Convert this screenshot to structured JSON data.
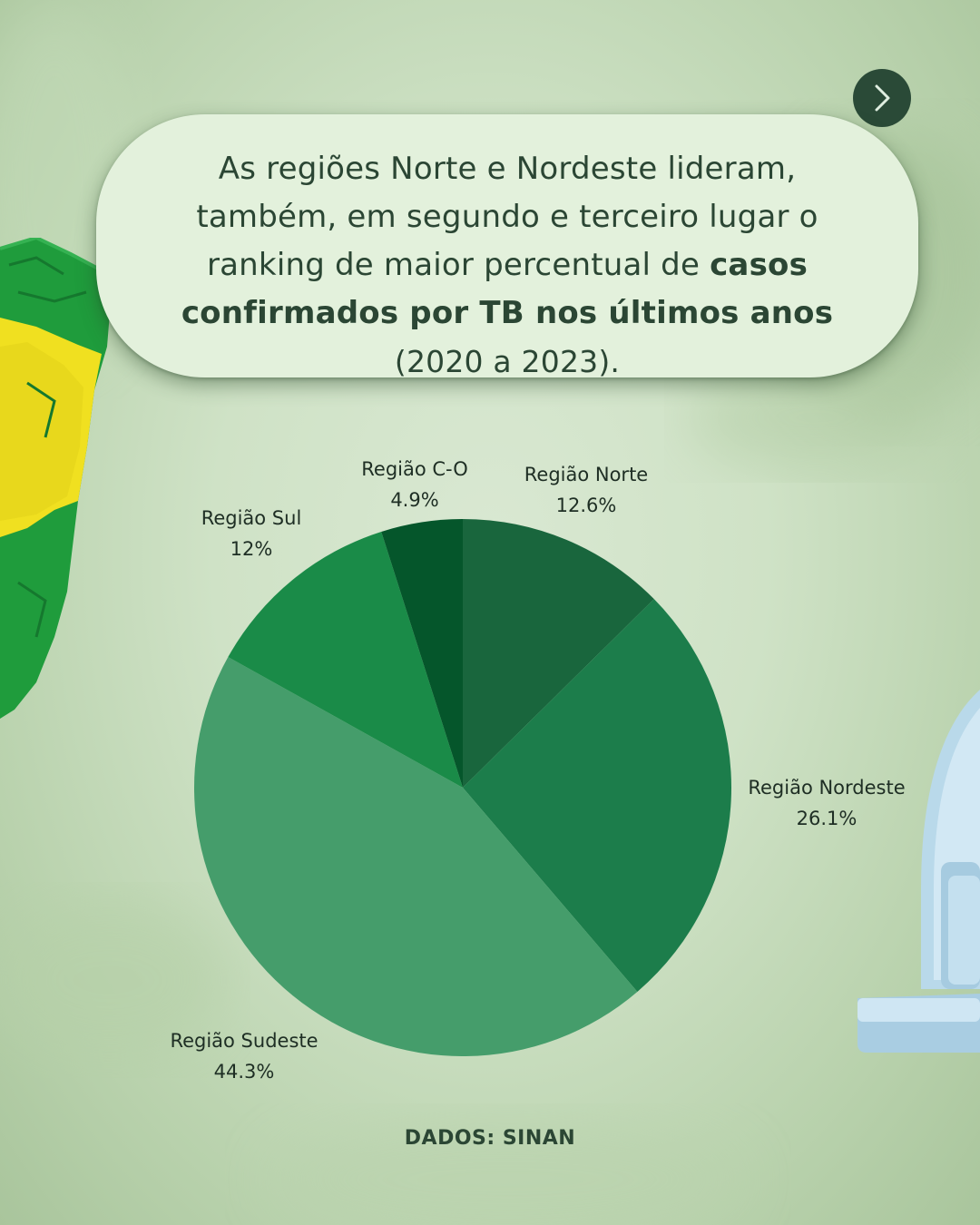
{
  "headline": {
    "line1": "As regiões Norte e Nordeste lideram,",
    "line2": "também, em segundo e terceiro lugar o",
    "line3_regular": "ranking de maior percentual de ",
    "line3_bold": "casos",
    "line4_bold": "confirmados por TB nos últimos anos",
    "line5": "(2020 a 2023)."
  },
  "source": "DADOS: SINAN",
  "nav": {
    "next_icon": "chevron-right-icon"
  },
  "chart_data": {
    "type": "pie",
    "categories": [
      "Região Norte",
      "Região Nordeste",
      "Região Sudeste",
      "Região Sul",
      "Região C-O"
    ],
    "values": [
      12.6,
      26.1,
      44.3,
      12,
      4.9
    ],
    "value_labels": [
      "12.6%",
      "26.1%",
      "44.3%",
      "12%",
      "4.9%"
    ],
    "colors": [
      "#19663d",
      "#1c7d4b",
      "#459d6b",
      "#1a8b48",
      "#05562b"
    ],
    "start": "top",
    "direction": "clockwise"
  }
}
